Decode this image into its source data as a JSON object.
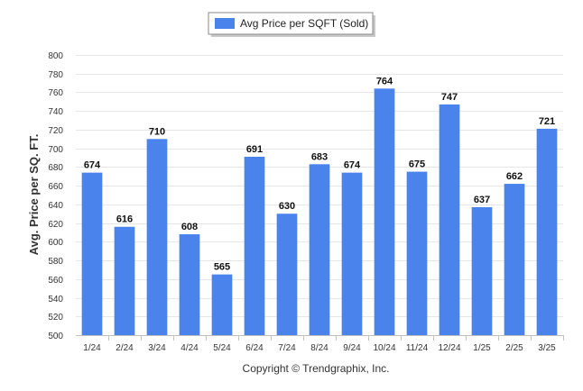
{
  "chart_data": {
    "type": "bar",
    "title": "",
    "ylabel": "Avg. Price per SQ. FT.",
    "xlabel": "",
    "ylim": [
      500,
      800
    ],
    "ytick_step": 20,
    "grid": true,
    "legend_position": "top-center",
    "categories": [
      "1/24",
      "2/24",
      "3/24",
      "4/24",
      "5/24",
      "6/24",
      "7/24",
      "8/24",
      "9/24",
      "10/24",
      "11/24",
      "12/24",
      "1/25",
      "2/25",
      "3/25"
    ],
    "series": [
      {
        "name": "Avg Price per SQFT (Sold)",
        "color": "#4b83ed",
        "values": [
          674,
          616,
          710,
          608,
          565,
          691,
          630,
          683,
          674,
          764,
          675,
          747,
          637,
          662,
          721
        ]
      }
    ]
  },
  "footer": {
    "copyright": "Copyright © Trendgraphix, Inc."
  }
}
